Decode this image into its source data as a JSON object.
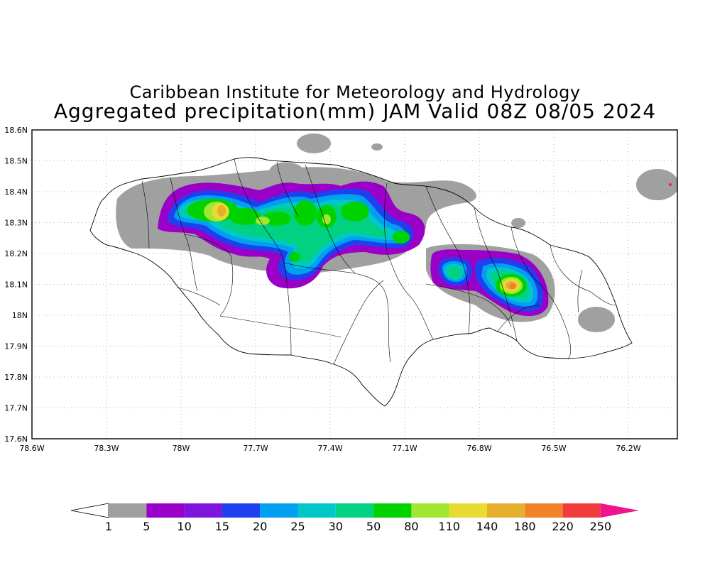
{
  "title": "Caribbean Institute for Meteorology and Hydrology",
  "subtitle": "Aggregated precipitation(mm) JAM Valid 08Z 08/05 2024",
  "map": {
    "lon_ticks": [
      "78.6W",
      "78.3W",
      "78W",
      "77.7W",
      "77.4W",
      "77.1W",
      "76.8W",
      "76.5W",
      "76.2W"
    ],
    "lat_ticks": [
      "18.6N",
      "18.5N",
      "18.4N",
      "18.3N",
      "18.2N",
      "18.1N",
      "18N",
      "17.9N",
      "17.8N",
      "17.7N",
      "17.6N"
    ],
    "grid": "dotted"
  },
  "colorbar": {
    "labels": [
      "1",
      "5",
      "10",
      "15",
      "20",
      "25",
      "30",
      "50",
      "80",
      "110",
      "140",
      "180",
      "220",
      "250"
    ],
    "colors": [
      "#a0a0a0",
      "#9a00c8",
      "#7f14dc",
      "#2040f0",
      "#00a0f0",
      "#00c8c8",
      "#00d282",
      "#00d200",
      "#a0e632",
      "#e6dc32",
      "#e6af2d",
      "#f08228",
      "#f03c3c",
      "#f0148c"
    ]
  }
}
